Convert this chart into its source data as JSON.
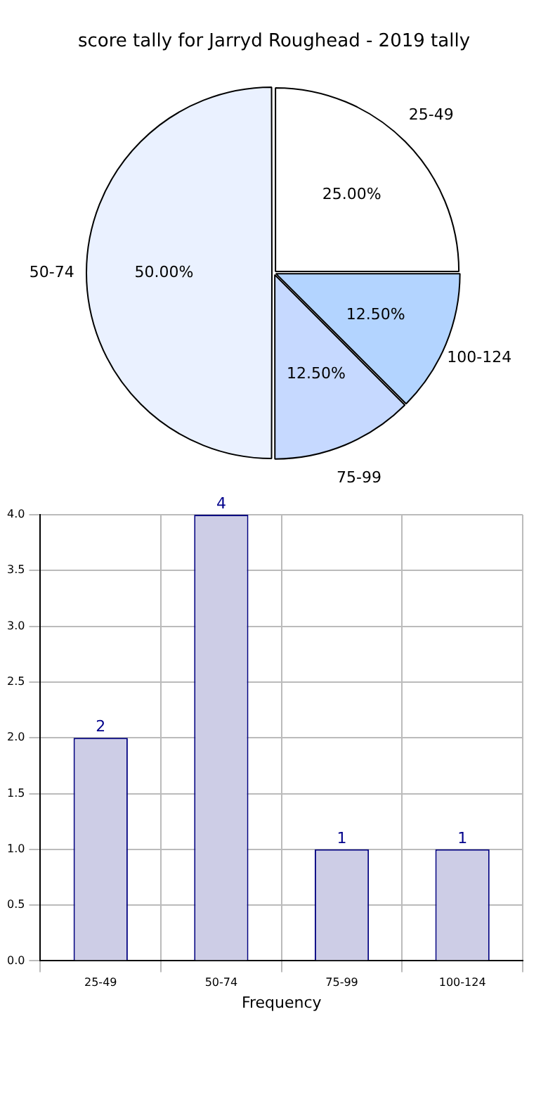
{
  "chart_data": [
    {
      "type": "pie",
      "title": "score tally for Jarryd Roughead - 2019 tally",
      "categories": [
        "25-49",
        "100-124",
        "75-99",
        "50-74"
      ],
      "values": [
        25,
        12.5,
        12.5,
        50
      ],
      "colors": [
        "#ffffff",
        "#b3d4ff",
        "#c6d9ff",
        "#eaf1ff"
      ],
      "value_labels": [
        "25.00%",
        "12.50%",
        "12.50%",
        "50.00%"
      ]
    },
    {
      "type": "bar",
      "categories": [
        "25-49",
        "50-74",
        "75-99",
        "100-124"
      ],
      "values": [
        2,
        4,
        1,
        1
      ],
      "color": "#cdcde6",
      "xlabel": "Frequency",
      "ylim": [
        0,
        4
      ],
      "yticks": [
        {
          "value": 0,
          "label": "0.0"
        },
        {
          "value": 0.5,
          "label": "0.5"
        },
        {
          "value": 1,
          "label": "1.0"
        },
        {
          "value": 1.5,
          "label": "1.5"
        },
        {
          "value": 2,
          "label": "2.0"
        },
        {
          "value": 2.5,
          "label": "2.5"
        },
        {
          "value": 3,
          "label": "3.0"
        },
        {
          "value": 3.5,
          "label": "3.5"
        },
        {
          "value": 4,
          "label": "4.0"
        }
      ],
      "grid": true,
      "data_labels": true
    }
  ]
}
